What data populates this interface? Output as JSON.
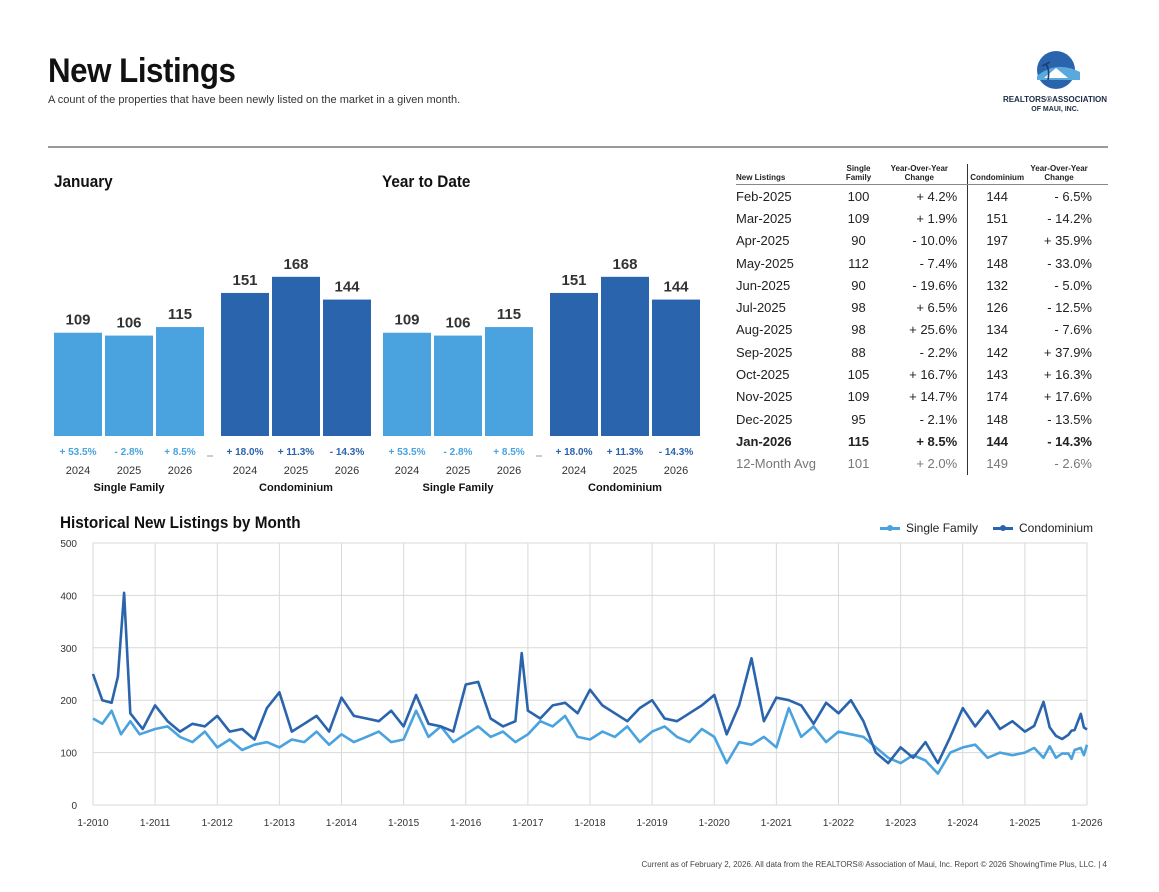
{
  "header": {
    "title": "New Listings",
    "subtitle": "A count of the properties that have been newly listed on the market in a given month.",
    "logo_line1": "REALTORS®ASSOCIATION",
    "logo_line2": "OF MAUI, INC."
  },
  "colors": {
    "single_family": "#4aa3de",
    "condominium": "#2a64ad",
    "grid": "#d9d9d9"
  },
  "summary": {
    "january_label": "January",
    "ytd_label": "Year to Date",
    "group_labels": [
      "Single Family",
      "Condominium"
    ]
  },
  "table": {
    "headers": {
      "month": "New Listings",
      "sf": "Single Family",
      "sf_change": "Year-Over-Year Change",
      "condo": "Condominium",
      "condo_change": "Year-Over-Year Change"
    },
    "rows": [
      {
        "month": "Feb-2025",
        "sf": "100",
        "sf_change": "+ 4.2%",
        "condo": "144",
        "condo_change": "- 6.5%"
      },
      {
        "month": "Mar-2025",
        "sf": "109",
        "sf_change": "+ 1.9%",
        "condo": "151",
        "condo_change": "- 14.2%"
      },
      {
        "month": "Apr-2025",
        "sf": "90",
        "sf_change": "- 10.0%",
        "condo": "197",
        "condo_change": "+ 35.9%"
      },
      {
        "month": "May-2025",
        "sf": "112",
        "sf_change": "- 7.4%",
        "condo": "148",
        "condo_change": "- 33.0%"
      },
      {
        "month": "Jun-2025",
        "sf": "90",
        "sf_change": "- 19.6%",
        "condo": "132",
        "condo_change": "- 5.0%"
      },
      {
        "month": "Jul-2025",
        "sf": "98",
        "sf_change": "+ 6.5%",
        "condo": "126",
        "condo_change": "- 12.5%"
      },
      {
        "month": "Aug-2025",
        "sf": "98",
        "sf_change": "+ 25.6%",
        "condo": "134",
        "condo_change": "- 7.6%"
      },
      {
        "month": "Sep-2025",
        "sf": "88",
        "sf_change": "- 2.2%",
        "condo": "142",
        "condo_change": "+ 37.9%"
      },
      {
        "month": "Oct-2025",
        "sf": "105",
        "sf_change": "+ 16.7%",
        "condo": "143",
        "condo_change": "+ 16.3%"
      },
      {
        "month": "Nov-2025",
        "sf": "109",
        "sf_change": "+ 14.7%",
        "condo": "174",
        "condo_change": "+ 17.6%"
      },
      {
        "month": "Dec-2025",
        "sf": "95",
        "sf_change": "- 2.1%",
        "condo": "148",
        "condo_change": "- 13.5%"
      },
      {
        "month": "Jan-2026",
        "sf": "115",
        "sf_change": "+ 8.5%",
        "condo": "144",
        "condo_change": "- 14.3%",
        "bold": true
      },
      {
        "month": "12-Month Avg",
        "sf": "101",
        "sf_change": "+ 2.0%",
        "condo": "149",
        "condo_change": "- 2.6%",
        "avg": true
      }
    ]
  },
  "footer": "Current as of February 2, 2026. All data from the REALTORS® Association of Maui, Inc. Report © 2026 ShowingTime Plus, LLC.  |  4",
  "chart_data": [
    {
      "type": "bar",
      "title": "January",
      "categories": [
        "2024",
        "2025",
        "2026"
      ],
      "ylim": [
        0,
        190
      ],
      "series": [
        {
          "name": "Single Family",
          "values": [
            109,
            106,
            115
          ],
          "changes": [
            "+ 53.5%",
            "- 2.8%",
            "+ 8.5%"
          ]
        },
        {
          "name": "Condominium",
          "values": [
            151,
            168,
            144
          ],
          "changes": [
            "+ 18.0%",
            "+ 11.3%",
            "- 14.3%"
          ]
        }
      ]
    },
    {
      "type": "bar",
      "title": "Year to Date",
      "categories": [
        "2024",
        "2025",
        "2026"
      ],
      "ylim": [
        0,
        190
      ],
      "series": [
        {
          "name": "Single Family",
          "values": [
            109,
            106,
            115
          ],
          "changes": [
            "+ 53.5%",
            "- 2.8%",
            "+ 8.5%"
          ]
        },
        {
          "name": "Condominium",
          "values": [
            151,
            168,
            144
          ],
          "changes": [
            "+ 18.0%",
            "+ 11.3%",
            "- 14.3%"
          ]
        }
      ]
    },
    {
      "type": "line",
      "title": "Historical New Listings by Month",
      "ylim": [
        0,
        500
      ],
      "yticks": [
        0,
        100,
        200,
        300,
        400,
        500
      ],
      "xlim": [
        2010.0,
        2026.0
      ],
      "xticks": [
        {
          "x": 2010,
          "label": "1-2010"
        },
        {
          "x": 2011,
          "label": "1-2011"
        },
        {
          "x": 2012,
          "label": "1-2012"
        },
        {
          "x": 2013,
          "label": "1-2013"
        },
        {
          "x": 2014,
          "label": "1-2014"
        },
        {
          "x": 2015,
          "label": "1-2015"
        },
        {
          "x": 2016,
          "label": "1-2016"
        },
        {
          "x": 2017,
          "label": "1-2017"
        },
        {
          "x": 2018,
          "label": "1-2018"
        },
        {
          "x": 2019,
          "label": "1-2019"
        },
        {
          "x": 2020,
          "label": "1-2020"
        },
        {
          "x": 2021,
          "label": "1-2021"
        },
        {
          "x": 2022,
          "label": "1-2022"
        },
        {
          "x": 2023,
          "label": "1-2023"
        },
        {
          "x": 2024,
          "label": "1-2024"
        },
        {
          "x": 2025,
          "label": "1-2025"
        },
        {
          "x": 2026,
          "label": "1-2026"
        }
      ],
      "series": [
        {
          "name": "Single Family",
          "points": [
            [
              2010.0,
              165
            ],
            [
              2010.15,
              155
            ],
            [
              2010.3,
              180
            ],
            [
              2010.45,
              135
            ],
            [
              2010.6,
              160
            ],
            [
              2010.75,
              135
            ],
            [
              2011.0,
              145
            ],
            [
              2011.2,
              150
            ],
            [
              2011.4,
              130
            ],
            [
              2011.6,
              120
            ],
            [
              2011.8,
              140
            ],
            [
              2012.0,
              110
            ],
            [
              2012.2,
              125
            ],
            [
              2012.4,
              105
            ],
            [
              2012.6,
              115
            ],
            [
              2012.8,
              120
            ],
            [
              2013.0,
              110
            ],
            [
              2013.2,
              125
            ],
            [
              2013.4,
              120
            ],
            [
              2013.6,
              140
            ],
            [
              2013.8,
              115
            ],
            [
              2014.0,
              135
            ],
            [
              2014.2,
              120
            ],
            [
              2014.4,
              130
            ],
            [
              2014.6,
              140
            ],
            [
              2014.8,
              120
            ],
            [
              2015.0,
              125
            ],
            [
              2015.2,
              180
            ],
            [
              2015.4,
              130
            ],
            [
              2015.6,
              150
            ],
            [
              2015.8,
              120
            ],
            [
              2016.0,
              135
            ],
            [
              2016.2,
              150
            ],
            [
              2016.4,
              130
            ],
            [
              2016.6,
              140
            ],
            [
              2016.8,
              120
            ],
            [
              2017.0,
              135
            ],
            [
              2017.2,
              160
            ],
            [
              2017.4,
              150
            ],
            [
              2017.6,
              170
            ],
            [
              2017.8,
              130
            ],
            [
              2018.0,
              125
            ],
            [
              2018.2,
              140
            ],
            [
              2018.4,
              130
            ],
            [
              2018.6,
              150
            ],
            [
              2018.8,
              120
            ],
            [
              2019.0,
              140
            ],
            [
              2019.2,
              150
            ],
            [
              2019.4,
              130
            ],
            [
              2019.6,
              120
            ],
            [
              2019.8,
              145
            ],
            [
              2020.0,
              130
            ],
            [
              2020.2,
              80
            ],
            [
              2020.4,
              120
            ],
            [
              2020.6,
              115
            ],
            [
              2020.8,
              130
            ],
            [
              2021.0,
              110
            ],
            [
              2021.2,
              185
            ],
            [
              2021.4,
              130
            ],
            [
              2021.6,
              150
            ],
            [
              2021.8,
              120
            ],
            [
              2022.0,
              140
            ],
            [
              2022.2,
              135
            ],
            [
              2022.4,
              130
            ],
            [
              2022.6,
              110
            ],
            [
              2022.8,
              90
            ],
            [
              2023.0,
              80
            ],
            [
              2023.2,
              95
            ],
            [
              2023.4,
              85
            ],
            [
              2023.6,
              60
            ],
            [
              2023.8,
              100
            ],
            [
              2024.0,
              110
            ],
            [
              2024.2,
              115
            ],
            [
              2024.4,
              90
            ],
            [
              2024.6,
              100
            ],
            [
              2024.8,
              95
            ],
            [
              2025.0,
              100
            ],
            [
              2025.15,
              109
            ],
            [
              2025.3,
              90
            ],
            [
              2025.4,
              112
            ],
            [
              2025.5,
              90
            ],
            [
              2025.6,
              98
            ],
            [
              2025.7,
              98
            ],
            [
              2025.75,
              88
            ],
            [
              2025.8,
              105
            ],
            [
              2025.9,
              109
            ],
            [
              2025.95,
              95
            ],
            [
              2026.0,
              115
            ]
          ]
        },
        {
          "name": "Condominium",
          "points": [
            [
              2010.0,
              250
            ],
            [
              2010.15,
              200
            ],
            [
              2010.3,
              195
            ],
            [
              2010.4,
              245
            ],
            [
              2010.5,
              405
            ],
            [
              2010.6,
              175
            ],
            [
              2010.8,
              145
            ],
            [
              2011.0,
              190
            ],
            [
              2011.2,
              160
            ],
            [
              2011.4,
              140
            ],
            [
              2011.6,
              155
            ],
            [
              2011.8,
              150
            ],
            [
              2012.0,
              170
            ],
            [
              2012.2,
              140
            ],
            [
              2012.4,
              145
            ],
            [
              2012.6,
              125
            ],
            [
              2012.8,
              185
            ],
            [
              2013.0,
              215
            ],
            [
              2013.2,
              140
            ],
            [
              2013.4,
              155
            ],
            [
              2013.6,
              170
            ],
            [
              2013.8,
              140
            ],
            [
              2014.0,
              205
            ],
            [
              2014.2,
              170
            ],
            [
              2014.4,
              165
            ],
            [
              2014.6,
              160
            ],
            [
              2014.8,
              180
            ],
            [
              2015.0,
              150
            ],
            [
              2015.2,
              210
            ],
            [
              2015.4,
              155
            ],
            [
              2015.6,
              150
            ],
            [
              2015.8,
              140
            ],
            [
              2016.0,
              230
            ],
            [
              2016.2,
              235
            ],
            [
              2016.4,
              165
            ],
            [
              2016.6,
              150
            ],
            [
              2016.8,
              160
            ],
            [
              2016.9,
              290
            ],
            [
              2017.0,
              180
            ],
            [
              2017.2,
              165
            ],
            [
              2017.4,
              190
            ],
            [
              2017.6,
              195
            ],
            [
              2017.8,
              175
            ],
            [
              2018.0,
              220
            ],
            [
              2018.2,
              190
            ],
            [
              2018.4,
              175
            ],
            [
              2018.6,
              160
            ],
            [
              2018.8,
              185
            ],
            [
              2019.0,
              200
            ],
            [
              2019.2,
              165
            ],
            [
              2019.4,
              160
            ],
            [
              2019.6,
              175
            ],
            [
              2019.8,
              190
            ],
            [
              2020.0,
              210
            ],
            [
              2020.2,
              135
            ],
            [
              2020.4,
              190
            ],
            [
              2020.6,
              280
            ],
            [
              2020.8,
              160
            ],
            [
              2021.0,
              205
            ],
            [
              2021.2,
              200
            ],
            [
              2021.4,
              190
            ],
            [
              2021.6,
              155
            ],
            [
              2021.8,
              195
            ],
            [
              2022.0,
              175
            ],
            [
              2022.2,
              200
            ],
            [
              2022.4,
              160
            ],
            [
              2022.6,
              100
            ],
            [
              2022.8,
              80
            ],
            [
              2023.0,
              110
            ],
            [
              2023.2,
              90
            ],
            [
              2023.4,
              120
            ],
            [
              2023.6,
              80
            ],
            [
              2023.8,
              130
            ],
            [
              2024.0,
              185
            ],
            [
              2024.2,
              150
            ],
            [
              2024.4,
              180
            ],
            [
              2024.6,
              145
            ],
            [
              2024.8,
              160
            ],
            [
              2025.0,
              140
            ],
            [
              2025.15,
              151
            ],
            [
              2025.3,
              197
            ],
            [
              2025.4,
              148
            ],
            [
              2025.5,
              132
            ],
            [
              2025.6,
              126
            ],
            [
              2025.7,
              134
            ],
            [
              2025.75,
              142
            ],
            [
              2025.8,
              143
            ],
            [
              2025.9,
              174
            ],
            [
              2025.95,
              148
            ],
            [
              2026.0,
              144
            ]
          ]
        }
      ]
    }
  ]
}
